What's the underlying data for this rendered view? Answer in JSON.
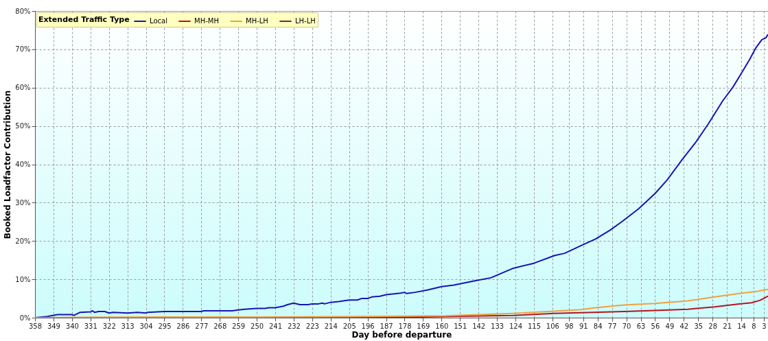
{
  "chart_data": {
    "type": "line",
    "xlabel": "Day before departure",
    "ylabel": "Booked Loadfactor Contribution",
    "legend_title": "Extended Traffic Type",
    "legend": "top left",
    "grid": true,
    "marker": "none",
    "line_style": "solid",
    "xlim": [
      358,
      1
    ],
    "xticks": [
      358,
      349,
      340,
      331,
      322,
      313,
      304,
      295,
      286,
      277,
      268,
      259,
      250,
      241,
      232,
      223,
      214,
      205,
      196,
      187,
      178,
      169,
      160,
      151,
      142,
      133,
      124,
      115,
      106,
      98,
      91,
      84,
      77,
      70,
      63,
      56,
      49,
      42,
      35,
      28,
      21,
      14,
      8,
      3
    ],
    "ylim": [
      0,
      80
    ],
    "yticks": [
      {
        "value": 0,
        "label": "0%"
      },
      {
        "value": 10,
        "label": "10%"
      },
      {
        "value": 20,
        "label": "20%"
      },
      {
        "value": 30,
        "label": "30%"
      },
      {
        "value": 40,
        "label": "40%"
      },
      {
        "value": 50,
        "label": "50%"
      },
      {
        "value": 60,
        "label": "60%"
      },
      {
        "value": 70,
        "label": "70%"
      },
      {
        "value": 80,
        "label": "80%"
      }
    ],
    "series": [
      {
        "name": "Local",
        "color": "#1414b4",
        "x": [
          358,
          352,
          347,
          340,
          339,
          336,
          331,
          330,
          329,
          327,
          324,
          322,
          320,
          313,
          308,
          304,
          303,
          295,
          277,
          276,
          262,
          259,
          256,
          250,
          246,
          244,
          241,
          237,
          235,
          232,
          229,
          225,
          223,
          220,
          218,
          217,
          214,
          210,
          205,
          201,
          199,
          196,
          194,
          190,
          187,
          180,
          178,
          177,
          173,
          167,
          160,
          154,
          145,
          136,
          125,
          115,
          105,
          100,
          92,
          85,
          78,
          72,
          64,
          56,
          50,
          43,
          36,
          30,
          23,
          18,
          14,
          10,
          7,
          4,
          2,
          1
        ],
        "values": [
          0,
          0.3,
          0.8,
          0.8,
          0.6,
          1.4,
          1.5,
          1.8,
          1.4,
          1.6,
          1.6,
          1.2,
          1.4,
          1.2,
          1.4,
          1.2,
          1.4,
          1.6,
          1.6,
          1.8,
          1.8,
          2.0,
          2.2,
          2.4,
          2.4,
          2.6,
          2.6,
          3.0,
          3.4,
          3.8,
          3.4,
          3.4,
          3.6,
          3.6,
          3.8,
          3.6,
          4.0,
          4.2,
          4.6,
          4.6,
          5.0,
          5.0,
          5.4,
          5.6,
          6.0,
          6.4,
          6.6,
          6.3,
          6.6,
          7.2,
          8.1,
          8.5,
          9.5,
          10.4,
          12.9,
          14.2,
          16.2,
          16.8,
          18.8,
          20.5,
          22.8,
          25.1,
          28.4,
          32.4,
          36.0,
          41.1,
          45.9,
          50.6,
          56.6,
          60.2,
          63.7,
          67.3,
          70.3,
          72.5,
          73.0,
          73.9
        ]
      },
      {
        "name": "MH-MH",
        "color": "#b4141e",
        "x": [
          358,
          300,
          200,
          170,
          158,
          125,
          105,
          92,
          71,
          56,
          40,
          27,
          15,
          9,
          5,
          1
        ],
        "values": [
          0,
          0,
          0.1,
          0.2,
          0.3,
          0.6,
          1.1,
          1.3,
          1.6,
          1.9,
          2.2,
          2.8,
          3.6,
          3.9,
          4.5,
          5.6
        ]
      },
      {
        "name": "MH-LH",
        "color": "#f0a040",
        "x": [
          358,
          340,
          300,
          250,
          195,
          158,
          125,
          105,
          92,
          85,
          71,
          56,
          40,
          27,
          15,
          6,
          1
        ],
        "values": [
          0,
          0.1,
          0.2,
          0.2,
          0.3,
          0.5,
          1.1,
          1.7,
          2.1,
          2.6,
          3.3,
          3.7,
          4.4,
          5.4,
          6.3,
          6.9,
          7.4
        ]
      },
      {
        "name": "LH-LH",
        "color": "#7f1f4f"
      }
    ]
  }
}
